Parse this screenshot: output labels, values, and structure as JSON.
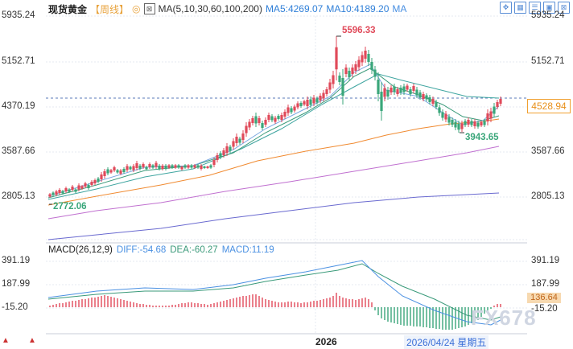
{
  "header": {
    "title": "现货黄金",
    "period": "【周线】",
    "circle_icon": "◎",
    "ma_main": "MA(5,10,30,60,100,200)",
    "ma5": "MA5:4269.07",
    "ma10": "MA10:4189.20",
    "ma_more": "MA"
  },
  "toolbar_icons": [
    "expand-icon",
    "grid-icon",
    "list-icon",
    "layout-icon",
    "close-icon"
  ],
  "y_axis_main": {
    "left": [
      "5935.24",
      "5152.71",
      "4370.19",
      "3587.66",
      "2805.13"
    ],
    "right": [
      "5935.24",
      "5152.71",
      "3587.66",
      "2805.13"
    ]
  },
  "y_axis_macd": {
    "left": [
      "391.19",
      "187.99",
      "-15.20"
    ],
    "right": [
      "391.19",
      "187.99",
      "-15.20"
    ]
  },
  "current_price": "4528.94",
  "macd_value_tag": "136.64",
  "annotations": {
    "high": "5596.33",
    "low": "3943.65",
    "low_left": "2772.06"
  },
  "macd_header": {
    "label": "MACD(26,12,9)",
    "diff": "DIFF:-54.68",
    "dea": "DEA:-60.27",
    "macd": "MACD:11.19"
  },
  "x_axis": {
    "year": "2026",
    "date_cursor": "2026/04/24 星期五"
  },
  "watermark": "FX678",
  "colors": {
    "up": "#e04a5a",
    "down": "#3aa67a",
    "ma5": "#7aa8e0",
    "ma10": "#3a9a7a",
    "ma30": "#f08a30",
    "ma60": "#c070d0",
    "ma100": "#6a6ad0"
  }
}
